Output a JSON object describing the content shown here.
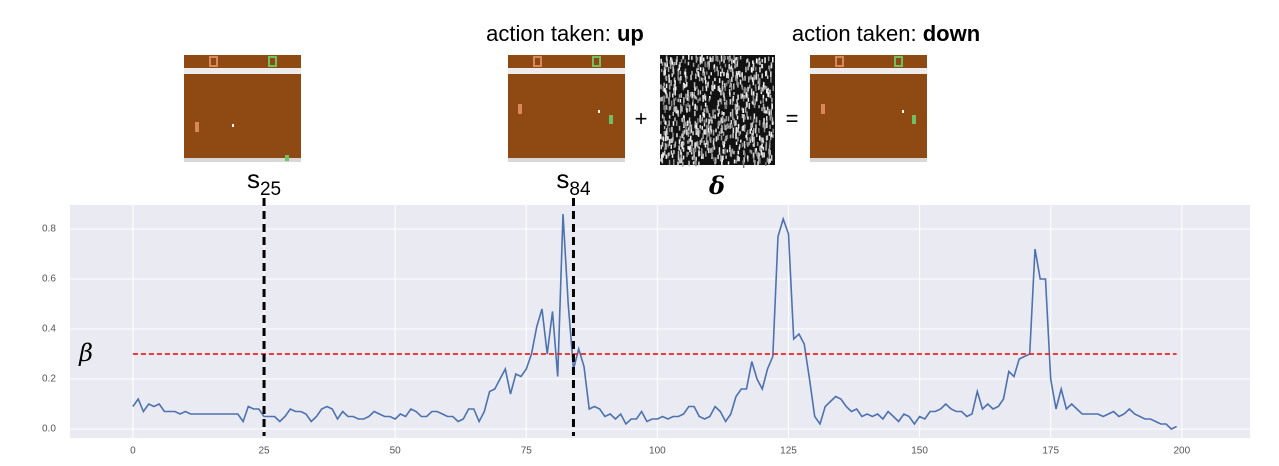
{
  "chart_data": {
    "type": "line",
    "color": "#4c72b0",
    "header": [
      {
        "prefix": "action taken: ",
        "action": "up"
      },
      {
        "prefix": "action taken: ",
        "action": "down"
      }
    ],
    "operators": [
      "+",
      "="
    ],
    "perturbation_label": "δ",
    "markers": [
      {
        "label": "s",
        "subscript": "25",
        "x": 25
      },
      {
        "label": "s",
        "subscript": "84",
        "x": 84
      }
    ],
    "threshold": {
      "label": "β",
      "value": 0.3,
      "color": "#e8251f"
    },
    "x": [
      0,
      1,
      2,
      3,
      4,
      5,
      6,
      7,
      8,
      9,
      10,
      11,
      12,
      13,
      14,
      15,
      16,
      17,
      18,
      19,
      20,
      21,
      22,
      23,
      24,
      25,
      26,
      27,
      28,
      29,
      30,
      31,
      32,
      33,
      34,
      35,
      36,
      37,
      38,
      39,
      40,
      41,
      42,
      43,
      44,
      45,
      46,
      47,
      48,
      49,
      50,
      51,
      52,
      53,
      54,
      55,
      56,
      57,
      58,
      59,
      60,
      61,
      62,
      63,
      64,
      65,
      66,
      67,
      68,
      69,
      70,
      71,
      72,
      73,
      74,
      75,
      76,
      77,
      78,
      79,
      80,
      81,
      82,
      83,
      84,
      85,
      86,
      87,
      88,
      89,
      90,
      91,
      92,
      93,
      94,
      95,
      96,
      97,
      98,
      99,
      100,
      101,
      102,
      103,
      104,
      105,
      106,
      107,
      108,
      109,
      110,
      111,
      112,
      113,
      114,
      115,
      116,
      117,
      118,
      119,
      120,
      121,
      122,
      123,
      124,
      125,
      126,
      127,
      128,
      129,
      130,
      131,
      132,
      133,
      134,
      135,
      136,
      137,
      138,
      139,
      140,
      141,
      142,
      143,
      144,
      145,
      146,
      147,
      148,
      149,
      150,
      151,
      152,
      153,
      154,
      155,
      156,
      157,
      158,
      159,
      160,
      161,
      162,
      163,
      164,
      165,
      166,
      167,
      168,
      169,
      170,
      171,
      172,
      173,
      174,
      175,
      176,
      177,
      178,
      179,
      180,
      181,
      182,
      183,
      184,
      185,
      186,
      187,
      188,
      189,
      190,
      191,
      192,
      193,
      194,
      195,
      196,
      197,
      198,
      199
    ],
    "values": [
      0.09,
      0.12,
      0.07,
      0.1,
      0.09,
      0.1,
      0.07,
      0.07,
      0.07,
      0.06,
      0.07,
      0.06,
      0.06,
      0.06,
      0.06,
      0.06,
      0.06,
      0.06,
      0.06,
      0.06,
      0.06,
      0.03,
      0.09,
      0.08,
      0.08,
      0.05,
      0.05,
      0.05,
      0.03,
      0.05,
      0.08,
      0.07,
      0.07,
      0.06,
      0.03,
      0.05,
      0.08,
      0.09,
      0.08,
      0.04,
      0.07,
      0.05,
      0.05,
      0.04,
      0.04,
      0.05,
      0.07,
      0.06,
      0.05,
      0.05,
      0.04,
      0.06,
      0.05,
      0.08,
      0.07,
      0.05,
      0.05,
      0.07,
      0.07,
      0.06,
      0.05,
      0.05,
      0.03,
      0.04,
      0.08,
      0.08,
      0.03,
      0.07,
      0.15,
      0.16,
      0.2,
      0.24,
      0.14,
      0.22,
      0.21,
      0.24,
      0.3,
      0.41,
      0.48,
      0.3,
      0.47,
      0.21,
      0.86,
      0.5,
      0.24,
      0.32,
      0.25,
      0.08,
      0.09,
      0.08,
      0.05,
      0.06,
      0.04,
      0.06,
      0.02,
      0.04,
      0.04,
      0.07,
      0.03,
      0.04,
      0.04,
      0.05,
      0.04,
      0.05,
      0.05,
      0.06,
      0.09,
      0.09,
      0.05,
      0.04,
      0.05,
      0.09,
      0.07,
      0.03,
      0.06,
      0.13,
      0.16,
      0.16,
      0.27,
      0.2,
      0.16,
      0.24,
      0.29,
      0.77,
      0.84,
      0.78,
      0.36,
      0.38,
      0.34,
      0.2,
      0.05,
      0.02,
      0.09,
      0.11,
      0.13,
      0.12,
      0.09,
      0.07,
      0.08,
      0.05,
      0.06,
      0.05,
      0.06,
      0.04,
      0.07,
      0.05,
      0.03,
      0.06,
      0.05,
      0.02,
      0.05,
      0.04,
      0.07,
      0.07,
      0.08,
      0.1,
      0.08,
      0.07,
      0.07,
      0.05,
      0.06,
      0.15,
      0.08,
      0.1,
      0.08,
      0.09,
      0.12,
      0.23,
      0.21,
      0.28,
      0.29,
      0.3,
      0.72,
      0.6,
      0.6,
      0.2,
      0.08,
      0.16,
      0.08,
      0.1,
      0.08,
      0.06,
      0.06,
      0.06,
      0.06,
      0.05,
      0.06,
      0.07,
      0.05,
      0.06,
      0.08,
      0.06,
      0.05,
      0.04,
      0.04,
      0.03,
      0.02,
      0.02,
      0.0,
      0.01
    ],
    "xlim": [
      -12,
      213
    ],
    "ylim": [
      -0.036,
      0.896
    ],
    "xticks": [
      0,
      25,
      50,
      75,
      100,
      125,
      150,
      175,
      200
    ],
    "yticks": [
      {
        "value": 0,
        "label": "0.0"
      },
      0.2,
      0.4,
      0.6,
      0.8
    ],
    "grid": true
  }
}
